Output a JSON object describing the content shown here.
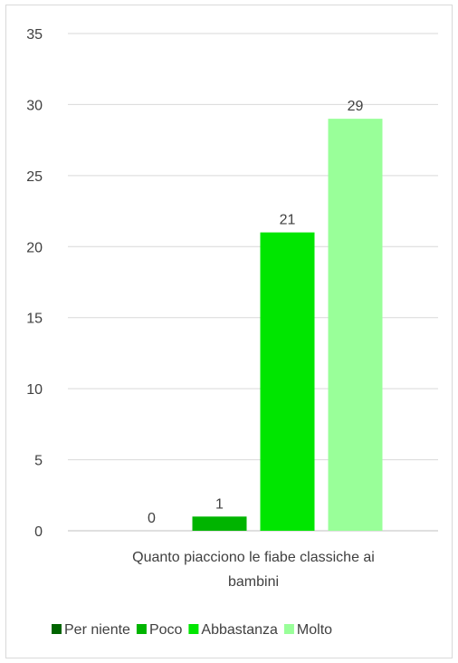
{
  "chart_data": {
    "type": "bar",
    "title": "",
    "xlabel_lines": [
      "Quanto piacciono le fiabe classiche ai",
      "bambini"
    ],
    "ylabel": "",
    "ylim": [
      0,
      35
    ],
    "yticks": [
      0,
      5,
      10,
      15,
      20,
      25,
      30,
      35
    ],
    "grid": true,
    "legend_position": "bottom",
    "categories": [
      "Quanto piacciono le fiabe classiche ai bambini"
    ],
    "series": [
      {
        "name": "Per niente",
        "values": [
          0
        ],
        "color": "#006400"
      },
      {
        "name": "Poco",
        "values": [
          1
        ],
        "color": "#00b400"
      },
      {
        "name": "Abbastanza",
        "values": [
          21
        ],
        "color": "#00e600"
      },
      {
        "name": "Molto",
        "values": [
          29
        ],
        "color": "#99ff99"
      }
    ]
  }
}
